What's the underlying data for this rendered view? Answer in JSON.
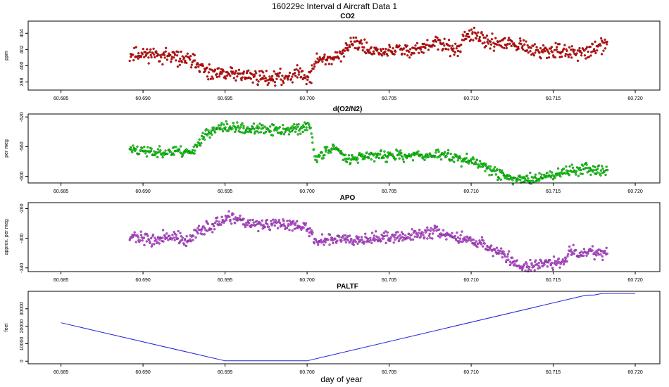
{
  "title": "160229c   Interval d Aircraft Data 1",
  "xlabel": "day of year",
  "chart_data": [
    {
      "type": "scatter",
      "title": "CO2",
      "ylabel": "ppm",
      "color": "#dd0000",
      "xlim": [
        60.683,
        60.7215
      ],
      "ylim": [
        397.0,
        405.5
      ],
      "xticks": [
        60.685,
        60.69,
        60.695,
        60.7,
        60.705,
        60.71,
        60.715,
        60.72
      ],
      "xtick_labels": [
        "60.685",
        "60.690",
        "60.695",
        "60.700",
        "60.705",
        "60.710",
        "60.715",
        "60.720"
      ],
      "yticks": [
        398,
        400,
        402,
        404
      ],
      "ytick_labels": [
        "398",
        "400",
        "402",
        "404"
      ],
      "trend": {
        "x": [
          60.6892,
          60.6905,
          60.692,
          60.6932,
          60.694,
          60.6955,
          60.697,
          60.6985,
          60.6995,
          60.7002,
          60.7005,
          60.702,
          60.7028,
          60.704,
          60.7055,
          60.707,
          60.708,
          60.7093,
          60.7096,
          60.711,
          60.7125,
          60.714,
          60.7155,
          60.717,
          60.7183
        ],
        "y": [
          401.3,
          401.5,
          401.0,
          400.5,
          398.9,
          399.0,
          398.6,
          398.5,
          399.2,
          398.4,
          400.7,
          401.0,
          403.2,
          401.6,
          401.9,
          402.1,
          402.8,
          401.8,
          404.0,
          402.9,
          402.6,
          401.8,
          401.7,
          401.7,
          402.7
        ]
      },
      "noise": 0.55,
      "seed": 11
    },
    {
      "type": "scatter",
      "title": "d(O2/N2)",
      "ylabel": "per meg",
      "color": "#00dd00",
      "xlim": [
        60.683,
        60.7215
      ],
      "ylim": [
        -609,
        -516
      ],
      "xticks": [
        60.685,
        60.69,
        60.695,
        60.7,
        60.705,
        60.71,
        60.715,
        60.72
      ],
      "xtick_labels": [
        "60.685",
        "60.690",
        "60.695",
        "60.700",
        "60.705",
        "60.710",
        "60.715",
        "60.720"
      ],
      "yticks": [
        -520,
        -560,
        -600
      ],
      "ytick_labels": [
        "-520",
        "-560",
        "-600"
      ],
      "trend": {
        "x": [
          60.6892,
          60.6905,
          60.692,
          60.6928,
          60.6932,
          60.694,
          60.695,
          60.6965,
          60.698,
          60.6995,
          60.7002,
          60.7005,
          60.7015,
          60.7025,
          60.704,
          60.706,
          60.708,
          60.709,
          60.7105,
          60.712,
          60.713,
          60.7145,
          60.716,
          60.7175,
          60.7183
        ],
        "y": [
          -563,
          -568,
          -566,
          -568,
          -560,
          -540,
          -534,
          -536,
          -538,
          -536,
          -533,
          -578,
          -560,
          -575,
          -572,
          -573,
          -570,
          -575,
          -583,
          -600,
          -605,
          -600,
          -592,
          -590,
          -592
        ]
      },
      "noise": 4.5,
      "seed": 23
    },
    {
      "type": "scatter",
      "title": "APO",
      "ylabel": "approx. per meg",
      "color": "#cc44ee",
      "xlim": [
        60.683,
        60.7215
      ],
      "ylim": [
        -345,
        -252
      ],
      "xticks": [
        60.685,
        60.69,
        60.695,
        60.7,
        60.705,
        60.71,
        60.715,
        60.72
      ],
      "xtick_labels": [
        "60.685",
        "60.690",
        "60.695",
        "60.700",
        "60.705",
        "60.710",
        "60.715",
        "60.720"
      ],
      "yticks": [
        -260,
        -300,
        -340
      ],
      "ytick_labels": [
        "-260",
        "-300",
        "-340"
      ],
      "trend": {
        "x": [
          60.6892,
          60.6905,
          60.692,
          60.6928,
          60.6932,
          60.694,
          60.6952,
          60.697,
          60.6985,
          60.6995,
          60.7002,
          60.7005,
          60.702,
          60.704,
          60.706,
          60.708,
          60.709,
          60.7105,
          60.712,
          60.713,
          60.7145,
          60.7155,
          60.716,
          60.7175,
          60.7183
        ],
        "y": [
          -297,
          -303,
          -297,
          -307,
          -292,
          -285,
          -274,
          -282,
          -282,
          -280,
          -292,
          -303,
          -300,
          -300,
          -298,
          -290,
          -298,
          -305,
          -323,
          -338,
          -335,
          -333,
          -320,
          -318,
          -318
        ]
      },
      "noise": 5.0,
      "seed": 37
    },
    {
      "type": "line",
      "title": "PALTF",
      "ylabel": "feet",
      "color": "#2222dd",
      "xlim": [
        60.683,
        60.7215
      ],
      "ylim": [
        -1500,
        40000
      ],
      "xticks": [
        60.685,
        60.69,
        60.695,
        60.7,
        60.705,
        60.71,
        60.715,
        60.72
      ],
      "xtick_labels": [
        "60.685",
        "60.690",
        "60.695",
        "60.700",
        "60.705",
        "60.710",
        "60.715",
        "60.720"
      ],
      "yticks": [
        0,
        10000,
        20000,
        30000
      ],
      "ytick_labels": [
        "0",
        "10000",
        "20000",
        "30000"
      ],
      "x": [
        60.685,
        60.695,
        60.7,
        60.717,
        60.7175,
        60.718,
        60.72
      ],
      "y": [
        22000,
        200,
        200,
        37800,
        37900,
        38800,
        38800
      ]
    }
  ]
}
